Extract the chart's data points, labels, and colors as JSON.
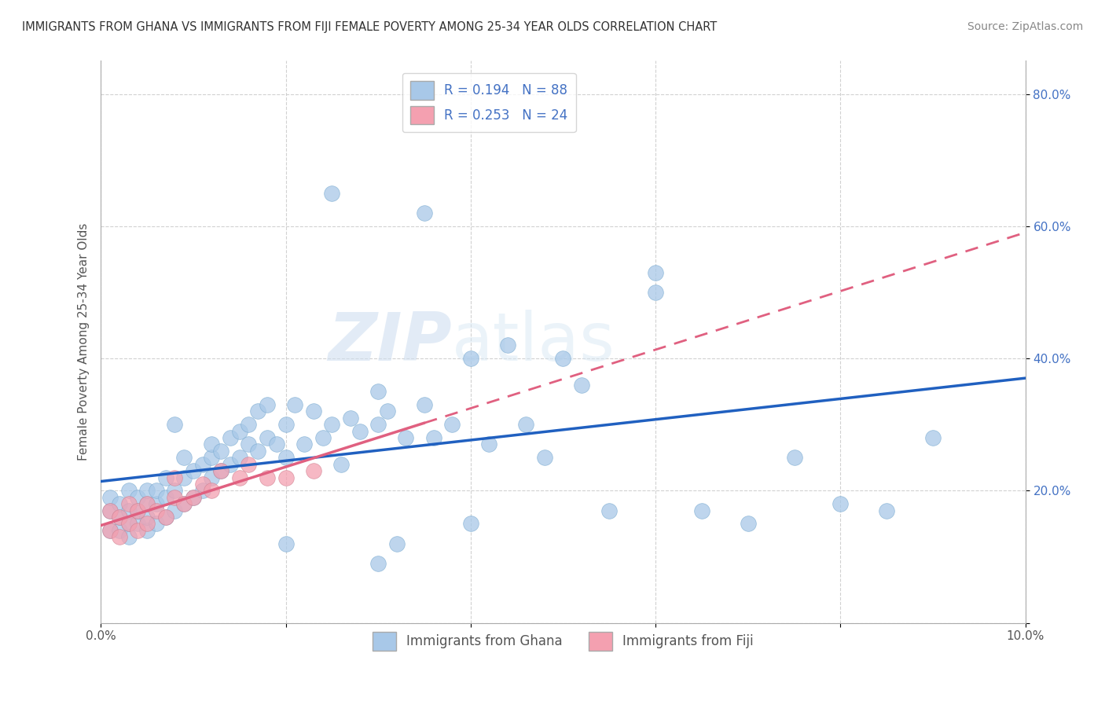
{
  "title": "IMMIGRANTS FROM GHANA VS IMMIGRANTS FROM FIJI FEMALE POVERTY AMONG 25-34 YEAR OLDS CORRELATION CHART",
  "source": "Source: ZipAtlas.com",
  "ylabel": "Female Poverty Among 25-34 Year Olds",
  "xlim": [
    0.0,
    0.1
  ],
  "ylim": [
    0.0,
    0.85
  ],
  "r_ghana": 0.194,
  "n_ghana": 88,
  "r_fiji": 0.253,
  "n_fiji": 24,
  "ghana_color": "#a8c8e8",
  "fiji_color": "#f4a0b0",
  "ghana_line_color": "#2060c0",
  "fiji_line_color": "#e06080",
  "watermark_zip": "ZIP",
  "watermark_atlas": "atlas",
  "ghana_scatter_x": [
    0.001,
    0.001,
    0.001,
    0.002,
    0.002,
    0.002,
    0.003,
    0.003,
    0.003,
    0.003,
    0.004,
    0.004,
    0.004,
    0.005,
    0.005,
    0.005,
    0.005,
    0.006,
    0.006,
    0.006,
    0.007,
    0.007,
    0.007,
    0.008,
    0.008,
    0.008,
    0.009,
    0.009,
    0.009,
    0.01,
    0.01,
    0.011,
    0.011,
    0.012,
    0.012,
    0.012,
    0.013,
    0.013,
    0.014,
    0.014,
    0.015,
    0.015,
    0.016,
    0.016,
    0.017,
    0.017,
    0.018,
    0.018,
    0.019,
    0.02,
    0.02,
    0.021,
    0.022,
    0.023,
    0.024,
    0.025,
    0.026,
    0.027,
    0.028,
    0.03,
    0.03,
    0.031,
    0.032,
    0.033,
    0.035,
    0.036,
    0.038,
    0.04,
    0.042,
    0.044,
    0.046,
    0.048,
    0.05,
    0.052,
    0.055,
    0.06,
    0.065,
    0.07,
    0.075,
    0.08,
    0.085,
    0.09,
    0.025,
    0.035,
    0.03,
    0.02,
    0.04,
    0.06
  ],
  "ghana_scatter_y": [
    0.14,
    0.17,
    0.19,
    0.14,
    0.16,
    0.18,
    0.13,
    0.15,
    0.17,
    0.2,
    0.15,
    0.17,
    0.19,
    0.14,
    0.16,
    0.18,
    0.2,
    0.15,
    0.18,
    0.2,
    0.16,
    0.19,
    0.22,
    0.17,
    0.2,
    0.3,
    0.18,
    0.22,
    0.25,
    0.19,
    0.23,
    0.2,
    0.24,
    0.22,
    0.25,
    0.27,
    0.23,
    0.26,
    0.24,
    0.28,
    0.25,
    0.29,
    0.27,
    0.3,
    0.26,
    0.32,
    0.28,
    0.33,
    0.27,
    0.25,
    0.3,
    0.33,
    0.27,
    0.32,
    0.28,
    0.3,
    0.24,
    0.31,
    0.29,
    0.3,
    0.35,
    0.32,
    0.12,
    0.28,
    0.33,
    0.28,
    0.3,
    0.4,
    0.27,
    0.42,
    0.3,
    0.25,
    0.4,
    0.36,
    0.17,
    0.5,
    0.17,
    0.15,
    0.25,
    0.18,
    0.17,
    0.28,
    0.65,
    0.62,
    0.09,
    0.12,
    0.15,
    0.53
  ],
  "fiji_scatter_x": [
    0.001,
    0.001,
    0.002,
    0.002,
    0.003,
    0.003,
    0.004,
    0.004,
    0.005,
    0.005,
    0.006,
    0.007,
    0.008,
    0.008,
    0.009,
    0.01,
    0.011,
    0.012,
    0.013,
    0.015,
    0.016,
    0.018,
    0.02,
    0.023
  ],
  "fiji_scatter_y": [
    0.14,
    0.17,
    0.13,
    0.16,
    0.15,
    0.18,
    0.14,
    0.17,
    0.15,
    0.18,
    0.17,
    0.16,
    0.19,
    0.22,
    0.18,
    0.19,
    0.21,
    0.2,
    0.23,
    0.22,
    0.24,
    0.22,
    0.22,
    0.23
  ]
}
